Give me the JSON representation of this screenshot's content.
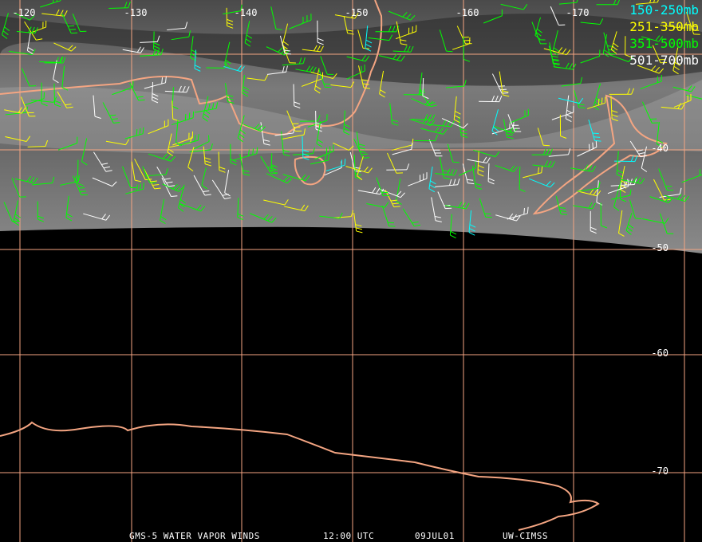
{
  "map": {
    "longitude_labels": [
      "-120",
      "-130",
      "-140",
      "-150",
      "-160",
      "-170"
    ],
    "latitude_labels": [
      "-40",
      "-50",
      "-60",
      "-70"
    ],
    "legend": [
      {
        "label": "150-250mb",
        "color": "#00ffff"
      },
      {
        "label": "251-350mb",
        "color": "#ffff00"
      },
      {
        "label": "351-500mb",
        "color": "#00ff00"
      },
      {
        "label": "501-700mb",
        "color": "#ffffff"
      }
    ],
    "footer": [
      "GMS-5 WATER VAPOR WINDS",
      "12:00 UTC",
      "09JUL01",
      "UW-CIMSS"
    ]
  }
}
